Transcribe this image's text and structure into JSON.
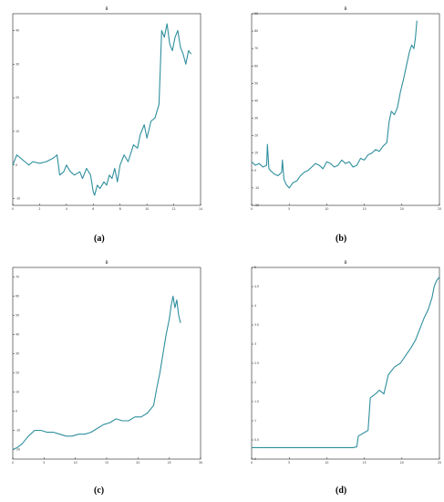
{
  "series_color": "#2f8f9d",
  "axis_color": "#222222",
  "chart_data": [
    {
      "id": "a",
      "type": "line",
      "title": "B",
      "caption": "(a)",
      "xlabel": "",
      "ylabel": "",
      "xlim": [
        0,
        14
      ],
      "ylim": [
        -12,
        45
      ],
      "xticks": [
        0,
        2,
        4,
        6,
        8,
        10,
        12,
        14
      ],
      "yticks": [
        -10,
        0,
        10,
        20,
        30,
        40
      ],
      "x": [
        0,
        0.3,
        0.6,
        0.9,
        1.2,
        1.5,
        2,
        2.5,
        3,
        3.3,
        3.5,
        3.8,
        4,
        4.3,
        4.6,
        5,
        5.2,
        5.5,
        5.8,
        6,
        6.1,
        6.3,
        6.5,
        6.8,
        7,
        7.2,
        7.4,
        7.6,
        7.8,
        8,
        8.3,
        8.6,
        9,
        9.3,
        9.5,
        9.8,
        10,
        10.3,
        10.6,
        10.9,
        11.1,
        11.3,
        11.5,
        11.7,
        11.9,
        12.1,
        12.3,
        12.5,
        12.7,
        12.9,
        13.1,
        13.3
      ],
      "y": [
        0,
        3,
        2,
        1,
        0,
        1,
        0.5,
        1,
        2,
        3,
        -3,
        -2,
        0,
        -2,
        -3,
        -2,
        -4,
        -1,
        -3,
        -8,
        -9,
        -6,
        -7,
        -5,
        -6,
        -3,
        -4,
        -1,
        -5,
        0,
        3,
        1,
        6,
        5,
        9,
        12,
        8,
        13,
        14,
        18,
        40,
        38,
        42,
        36,
        34,
        38,
        40,
        35,
        33,
        30,
        34,
        33
      ]
    },
    {
      "id": "b",
      "type": "line",
      "title": "B",
      "caption": "(b)",
      "xlabel": "",
      "ylabel": "",
      "xlim": [
        0,
        25
      ],
      "ylim": [
        -20,
        90
      ],
      "xticks": [
        0,
        5,
        10,
        15,
        20,
        25
      ],
      "yticks": [
        -20,
        -10,
        0,
        10,
        20,
        30,
        40,
        50,
        60,
        70,
        80,
        90
      ],
      "x": [
        0,
        0.5,
        1,
        1.5,
        2,
        2.1,
        2.3,
        2.5,
        3,
        3.5,
        4,
        4.1,
        4.3,
        4.6,
        5,
        5.5,
        6,
        6.5,
        7,
        7.5,
        8,
        8.5,
        9,
        9.5,
        10,
        10.5,
        11,
        11.5,
        12,
        12.5,
        13,
        13.5,
        14,
        14.5,
        15,
        15.5,
        16,
        16.5,
        17,
        17.5,
        18,
        18.3,
        18.6,
        19,
        19.4,
        19.8,
        20.2,
        20.6,
        21,
        21.3,
        21.6,
        21.8,
        22
      ],
      "y": [
        5,
        3,
        4,
        2,
        3,
        15,
        1,
        0,
        -2,
        -3,
        -1,
        6,
        -5,
        -8,
        -10,
        -7,
        -6,
        -3,
        -1,
        0,
        2,
        4,
        3,
        1,
        5,
        4,
        2,
        3,
        6,
        4,
        5,
        2,
        3,
        7,
        6,
        9,
        10,
        12,
        11,
        14,
        16,
        28,
        34,
        32,
        36,
        45,
        52,
        60,
        68,
        72,
        70,
        76,
        86
      ]
    },
    {
      "id": "c",
      "type": "line",
      "title": "B",
      "caption": "(c)",
      "xlabel": "",
      "ylabel": "",
      "xlim": [
        0,
        30
      ],
      "ylim": [
        -25,
        75
      ],
      "xticks": [
        0,
        5,
        10,
        15,
        20,
        25,
        30
      ],
      "yticks": [
        -20,
        -10,
        0,
        10,
        20,
        30,
        40,
        50,
        60,
        70
      ],
      "x": [
        0,
        0.7,
        1.5,
        2.5,
        3.5,
        4.5,
        5.5,
        6.5,
        7.5,
        8.5,
        9.5,
        10.5,
        11.5,
        12.5,
        13.5,
        14.5,
        15.5,
        16.5,
        17.5,
        18.5,
        19.5,
        20.5,
        21.5,
        22.5,
        23,
        23.5,
        24,
        24.5,
        25,
        25.3,
        25.6,
        25.9,
        26.2,
        26.5,
        26.8
      ],
      "y": [
        -20,
        -19,
        -17,
        -13,
        -10,
        -10,
        -11,
        -11,
        -12,
        -13,
        -13,
        -12,
        -12,
        -11,
        -9,
        -7,
        -6,
        -4,
        -5,
        -5,
        -3,
        -3,
        -1,
        3,
        12,
        20,
        30,
        40,
        48,
        55,
        60,
        54,
        58,
        50,
        46
      ]
    },
    {
      "id": "d",
      "type": "line",
      "title": "B",
      "caption": "(d)",
      "xlabel": "",
      "ylabel": "",
      "xlim": [
        0,
        25
      ],
      "ylim": [
        0,
        5
      ],
      "xticks": [
        0,
        5,
        10,
        15,
        20,
        25
      ],
      "yticks": [
        0,
        0.5,
        1,
        1.5,
        2,
        2.5,
        3,
        3.5,
        4,
        4.5,
        5
      ],
      "x": [
        0,
        2,
        4,
        6,
        8,
        10,
        12,
        13.5,
        14,
        14.2,
        15.5,
        15.8,
        16.5,
        17,
        17.6,
        18.2,
        19,
        19.8,
        20.5,
        21.2,
        21.8,
        22.4,
        23,
        23.5,
        24,
        24.3,
        24.6,
        25
      ],
      "y": [
        0.3,
        0.3,
        0.3,
        0.3,
        0.3,
        0.3,
        0.3,
        0.3,
        0.32,
        0.6,
        0.75,
        1.6,
        1.7,
        1.8,
        1.7,
        2.2,
        2.4,
        2.5,
        2.7,
        2.9,
        3.1,
        3.4,
        3.7,
        3.9,
        4.2,
        4.5,
        4.65,
        4.75
      ]
    }
  ]
}
